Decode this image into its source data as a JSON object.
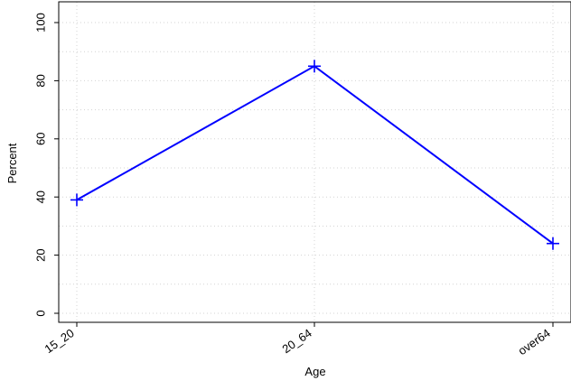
{
  "chart_data": {
    "type": "line",
    "title": "",
    "xlabel": "Age",
    "ylabel": "Percent",
    "categories": [
      "15_20",
      "20_64",
      "over64"
    ],
    "series": [
      {
        "values": [
          39,
          85,
          24
        ],
        "color": "#0000ff",
        "marker": "plus"
      }
    ],
    "ylim": [
      -5,
      102
    ],
    "yticks": [
      0,
      20,
      40,
      60,
      80,
      100
    ],
    "grid": true,
    "grid_style": "dotted",
    "grid_color": "#d3d3d3"
  }
}
